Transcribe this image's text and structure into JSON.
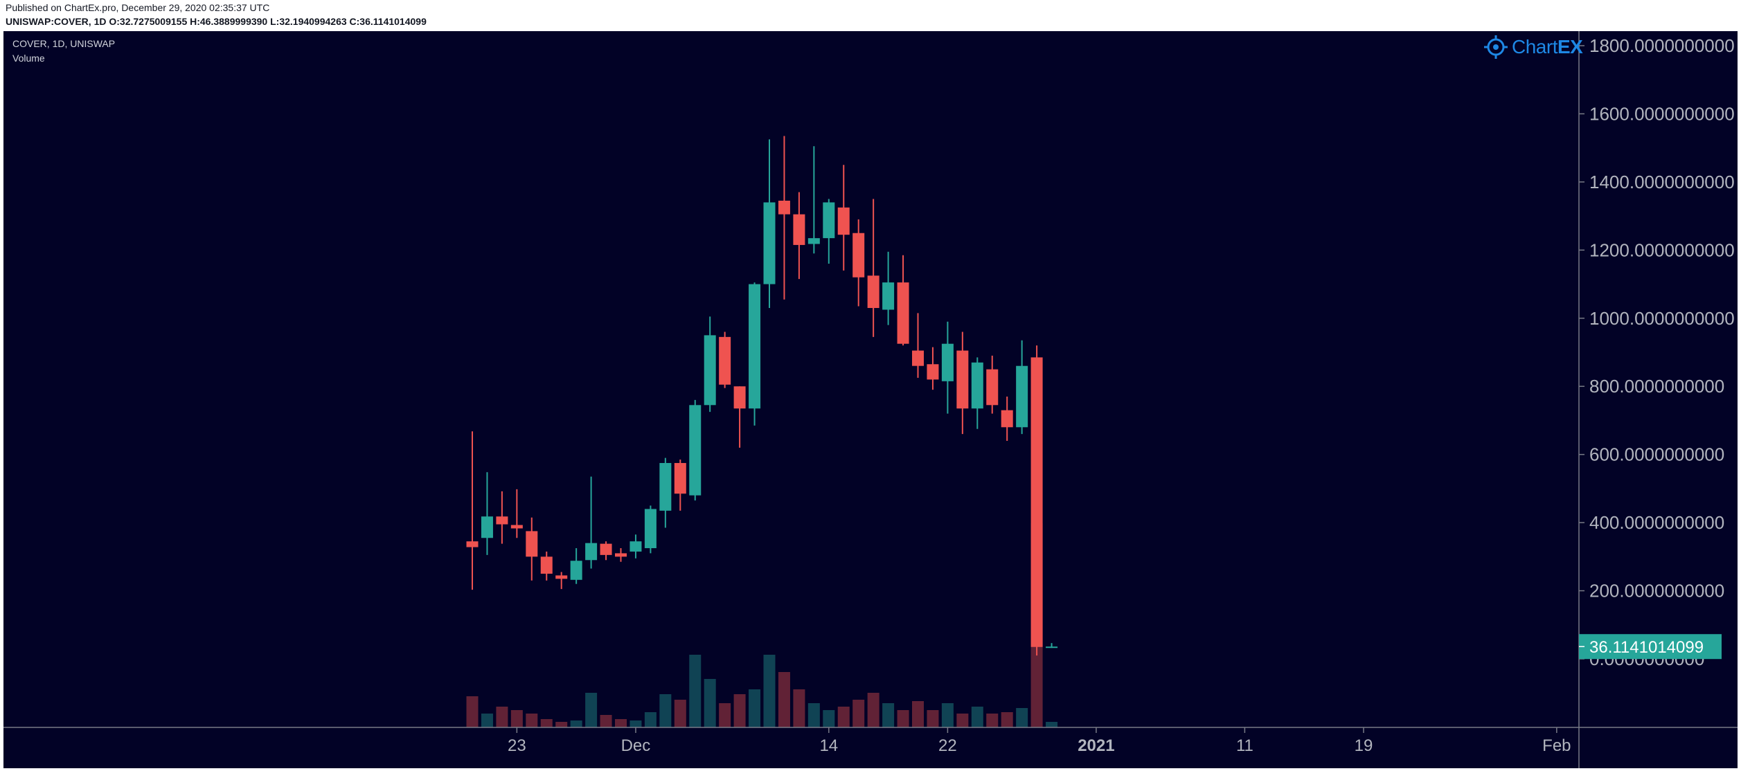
{
  "header": {
    "published": "Published on ChartEx.pro, December 29, 2020 02:35:37 UTC",
    "ohlc": "UNISWAP:COVER, 1D O:32.7275009155 H:46.3889999390 L:32.1940994263 C:36.1141014099"
  },
  "legend": {
    "symbol": "COVER, 1D, UNISWAP",
    "volume": "Volume"
  },
  "logo": {
    "text": "Chart",
    "text_bold": "EX"
  },
  "colors": {
    "background": "#020226",
    "up": "#26a69a",
    "down": "#ef5350",
    "axis_text": "#b2b5be",
    "logo": "#1e88e5",
    "last_price_bg": "#26a69a"
  },
  "chart_data": {
    "type": "candlestick",
    "title": "COVER, 1D, UNISWAP",
    "y_axis": {
      "position": "right",
      "ticks": [
        1800,
        1600,
        1400,
        1200,
        1000,
        800,
        600,
        400,
        200,
        0
      ],
      "tick_labels": [
        "1800.0000000000",
        "1600.0000000000",
        "1400.0000000000",
        "1200.0000000000",
        "1000.0000000000",
        "800.0000000000",
        "600.0000000000",
        "400.0000000000",
        "200.0000000000",
        "0.0000000000"
      ]
    },
    "x_axis": {
      "ticks": [
        {
          "label": "23",
          "date": "2020-11-23",
          "bold": false
        },
        {
          "label": "Dec",
          "date": "2020-12-01",
          "bold": false
        },
        {
          "label": "14",
          "date": "2020-12-14",
          "bold": false
        },
        {
          "label": "22",
          "date": "2020-12-22",
          "bold": false
        },
        {
          "label": "2021",
          "date": "2021-01-01",
          "bold": true
        },
        {
          "label": "11",
          "date": "2021-01-11",
          "bold": false
        },
        {
          "label": "19",
          "date": "2021-01-19",
          "bold": false
        },
        {
          "label": "Feb",
          "date": "2021-02-01",
          "bold": false
        }
      ]
    },
    "last_price": 36.1141014099,
    "last_price_label": "36.1141014099",
    "candles": [
      {
        "date": "2020-11-20",
        "o": 345,
        "h": 668,
        "l": 203,
        "c": 328,
        "v": 45
      },
      {
        "date": "2020-11-21",
        "o": 355,
        "h": 548,
        "l": 305,
        "c": 418,
        "v": 20
      },
      {
        "date": "2020-11-22",
        "o": 418,
        "h": 492,
        "l": 338,
        "c": 395,
        "v": 30
      },
      {
        "date": "2020-11-23",
        "o": 393,
        "h": 498,
        "l": 355,
        "c": 383,
        "v": 25
      },
      {
        "date": "2020-11-24",
        "o": 375,
        "h": 415,
        "l": 230,
        "c": 300,
        "v": 20
      },
      {
        "date": "2020-11-25",
        "o": 300,
        "h": 315,
        "l": 230,
        "c": 250,
        "v": 12
      },
      {
        "date": "2020-11-26",
        "o": 245,
        "h": 255,
        "l": 205,
        "c": 235,
        "v": 8
      },
      {
        "date": "2020-11-27",
        "o": 232,
        "h": 325,
        "l": 220,
        "c": 288,
        "v": 10
      },
      {
        "date": "2020-11-28",
        "o": 290,
        "h": 535,
        "l": 265,
        "c": 340,
        "v": 50
      },
      {
        "date": "2020-11-29",
        "o": 338,
        "h": 345,
        "l": 290,
        "c": 305,
        "v": 18
      },
      {
        "date": "2020-11-30",
        "o": 310,
        "h": 325,
        "l": 285,
        "c": 300,
        "v": 12
      },
      {
        "date": "2020-12-01",
        "o": 315,
        "h": 365,
        "l": 295,
        "c": 345,
        "v": 10
      },
      {
        "date": "2020-12-02",
        "o": 325,
        "h": 450,
        "l": 310,
        "c": 440,
        "v": 22
      },
      {
        "date": "2020-12-03",
        "o": 435,
        "h": 590,
        "l": 385,
        "c": 575,
        "v": 48
      },
      {
        "date": "2020-12-04",
        "o": 575,
        "h": 585,
        "l": 435,
        "c": 485,
        "v": 40
      },
      {
        "date": "2020-12-05",
        "o": 480,
        "h": 760,
        "l": 465,
        "c": 745,
        "v": 105
      },
      {
        "date": "2020-12-06",
        "o": 745,
        "h": 1005,
        "l": 725,
        "c": 950,
        "v": 70
      },
      {
        "date": "2020-12-07",
        "o": 945,
        "h": 960,
        "l": 795,
        "c": 805,
        "v": 35
      },
      {
        "date": "2020-12-08",
        "o": 800,
        "h": 800,
        "l": 620,
        "c": 735,
        "v": 48
      },
      {
        "date": "2020-12-09",
        "o": 735,
        "h": 1105,
        "l": 685,
        "c": 1100,
        "v": 55
      },
      {
        "date": "2020-12-10",
        "o": 1100,
        "h": 1525,
        "l": 1030,
        "c": 1340,
        "v": 105
      },
      {
        "date": "2020-12-11",
        "o": 1345,
        "h": 1535,
        "l": 1055,
        "c": 1305,
        "v": 80
      },
      {
        "date": "2020-12-12",
        "o": 1305,
        "h": 1370,
        "l": 1115,
        "c": 1215,
        "v": 55
      },
      {
        "date": "2020-12-13",
        "o": 1218,
        "h": 1505,
        "l": 1190,
        "c": 1235,
        "v": 35
      },
      {
        "date": "2020-12-14",
        "o": 1235,
        "h": 1350,
        "l": 1160,
        "c": 1340,
        "v": 25
      },
      {
        "date": "2020-12-15",
        "o": 1325,
        "h": 1450,
        "l": 1140,
        "c": 1245,
        "v": 30
      },
      {
        "date": "2020-12-16",
        "o": 1250,
        "h": 1290,
        "l": 1035,
        "c": 1120,
        "v": 40
      },
      {
        "date": "2020-12-17",
        "o": 1125,
        "h": 1350,
        "l": 945,
        "c": 1030,
        "v": 50
      },
      {
        "date": "2020-12-18",
        "o": 1025,
        "h": 1195,
        "l": 980,
        "c": 1105,
        "v": 35
      },
      {
        "date": "2020-12-19",
        "o": 1105,
        "h": 1185,
        "l": 920,
        "c": 925,
        "v": 25
      },
      {
        "date": "2020-12-20",
        "o": 905,
        "h": 1015,
        "l": 825,
        "c": 860,
        "v": 38
      },
      {
        "date": "2020-12-21",
        "o": 865,
        "h": 915,
        "l": 790,
        "c": 820,
        "v": 25
      },
      {
        "date": "2020-12-22",
        "o": 815,
        "h": 990,
        "l": 720,
        "c": 925,
        "v": 35
      },
      {
        "date": "2020-12-23",
        "o": 905,
        "h": 960,
        "l": 660,
        "c": 735,
        "v": 20
      },
      {
        "date": "2020-12-24",
        "o": 735,
        "h": 885,
        "l": 675,
        "c": 870,
        "v": 30
      },
      {
        "date": "2020-12-25",
        "o": 850,
        "h": 890,
        "l": 720,
        "c": 745,
        "v": 20
      },
      {
        "date": "2020-12-26",
        "o": 730,
        "h": 770,
        "l": 640,
        "c": 680,
        "v": 22
      },
      {
        "date": "2020-12-27",
        "o": 680,
        "h": 935,
        "l": 660,
        "c": 860,
        "v": 28
      },
      {
        "date": "2020-12-28",
        "o": 885,
        "h": 920,
        "l": 10,
        "c": 35,
        "v": 295
      },
      {
        "date": "2020-12-29",
        "o": 32.73,
        "h": 46.39,
        "l": 32.19,
        "c": 36.11,
        "v": 8
      }
    ]
  }
}
